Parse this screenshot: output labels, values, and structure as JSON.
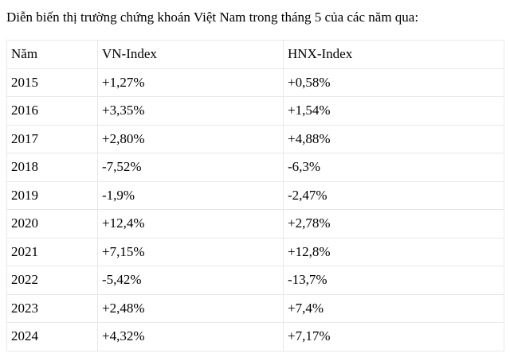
{
  "page": {
    "title": "Diễn biến thị trường chứng khoán Việt Nam trong tháng 5 của các năm qua:"
  },
  "table": {
    "columns": [
      "Năm",
      "VN-Index",
      "HNX-Index"
    ],
    "rows": [
      {
        "year": "2015",
        "vn_index": "+1,27%",
        "hnx_index": "+0,58%"
      },
      {
        "year": "2016",
        "vn_index": "+3,35%",
        "hnx_index": "+1,54%"
      },
      {
        "year": "2017",
        "vn_index": "+2,80%",
        "hnx_index": "+4,88%"
      },
      {
        "year": "2018",
        "vn_index": "-7,52%",
        "hnx_index": "-6,3%"
      },
      {
        "year": "2019",
        "vn_index": "-1,9%",
        "hnx_index": "-2,47%"
      },
      {
        "year": "2020",
        "vn_index": "+12,4%",
        "hnx_index": "+2,78%"
      },
      {
        "year": "2021",
        "vn_index": "+7,15%",
        "hnx_index": "+12,8%"
      },
      {
        "year": "2022",
        "vn_index": "-5,42%",
        "hnx_index": "-13,7%"
      },
      {
        "year": "2023",
        "vn_index": "+2,48%",
        "hnx_index": "+7,4%"
      },
      {
        "year": "2024",
        "vn_index": "+4,32%",
        "hnx_index": "+7,17%"
      }
    ],
    "colors": {
      "border": "#e8e8e8",
      "text": "#000000",
      "background": "#ffffff"
    }
  }
}
